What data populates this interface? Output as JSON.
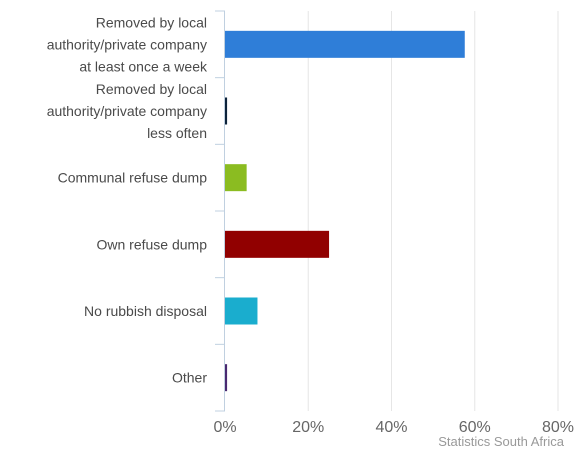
{
  "chart_data": {
    "type": "bar",
    "orientation": "horizontal",
    "categories": [
      [
        "Removed by local",
        "authority/private company",
        "at least once a week"
      ],
      [
        "Removed by local",
        "authority/private company",
        "less often"
      ],
      [
        "Communal refuse dump"
      ],
      [
        "Own refuse dump"
      ],
      [
        "No rubbish disposal"
      ],
      [
        "Other"
      ]
    ],
    "values": [
      57.6,
      0.5,
      5.2,
      25.0,
      7.8,
      0.5
    ],
    "colors": [
      "#2f7ed8",
      "#0d233a",
      "#8bbc21",
      "#910000",
      "#1aadce",
      "#492970"
    ],
    "xlim": [
      0,
      80
    ],
    "xticks": [
      0,
      20,
      40,
      60,
      80
    ],
    "xtick_labels": [
      "0%",
      "20%",
      "40%",
      "60%",
      "80%"
    ],
    "grid": true,
    "title": "",
    "xlabel": "",
    "ylabel": "",
    "credit": "Statistics South Africa"
  }
}
